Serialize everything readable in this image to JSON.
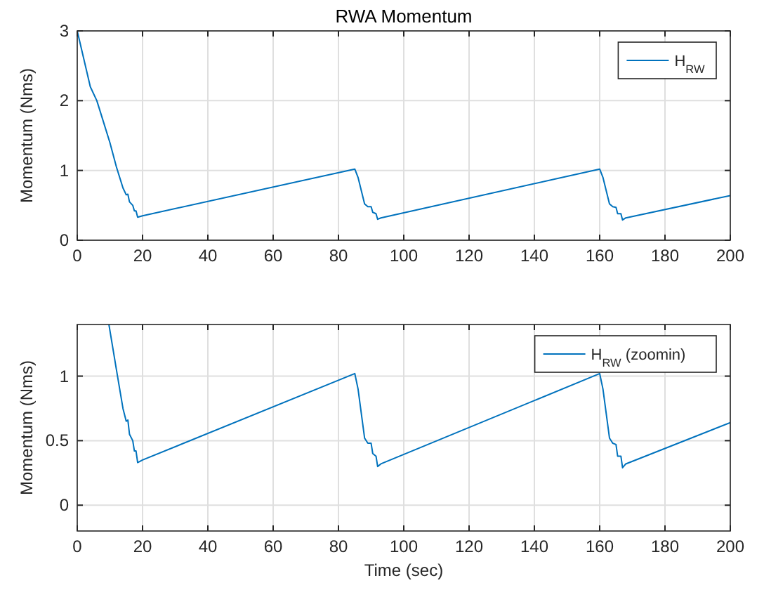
{
  "chart_data": [
    {
      "type": "line",
      "title": "RWA Momentum",
      "ylabel": "Momentum (Nms)",
      "xlim": [
        0,
        200
      ],
      "xticks": [
        0,
        20,
        40,
        60,
        80,
        100,
        120,
        140,
        160,
        180,
        200
      ],
      "ylim": [
        0,
        3
      ],
      "yticks": [
        0,
        1,
        2,
        3
      ],
      "grid": true,
      "legend": "top right",
      "x": [
        0,
        2,
        4,
        6,
        8,
        10,
        12,
        14,
        15,
        15.5,
        16,
        17,
        17.5,
        18,
        18.5,
        20,
        85,
        86,
        88,
        89,
        90,
        90.5,
        91.5,
        92,
        93,
        160,
        161,
        163,
        164,
        165,
        165.5,
        166.5,
        167,
        168,
        200
      ],
      "series": [
        {
          "name": "H$_{RW}$",
          "color": "#0072bd",
          "values": [
            3,
            2.6,
            2.2,
            2.0,
            1.7,
            1.4,
            1.05,
            0.75,
            0.65,
            0.66,
            0.55,
            0.5,
            0.42,
            0.42,
            0.33,
            0.35,
            1.02,
            0.9,
            0.52,
            0.48,
            0.48,
            0.4,
            0.38,
            0.3,
            0.32,
            1.02,
            0.9,
            0.52,
            0.48,
            0.47,
            0.38,
            0.38,
            0.29,
            0.32,
            0.64
          ]
        }
      ]
    },
    {
      "type": "line",
      "xlabel": "Time (sec)",
      "ylabel": "Momentum (Nms)",
      "xlim": [
        0,
        200
      ],
      "xticks": [
        0,
        20,
        40,
        60,
        80,
        100,
        120,
        140,
        160,
        180,
        200
      ],
      "ylim": [
        -0.2,
        1.4
      ],
      "yticks": [
        0,
        0.5,
        1
      ],
      "grid": true,
      "legend": "top right",
      "x": [
        9.7,
        12,
        14,
        15,
        15.5,
        16,
        17,
        17.5,
        18,
        18.5,
        20,
        85,
        86,
        88,
        89,
        90,
        90.5,
        91.5,
        92,
        93,
        160,
        161,
        163,
        164,
        165,
        165.5,
        166.5,
        167,
        168,
        200
      ],
      "series": [
        {
          "name": "H$_{RW}$ (zoomin)",
          "color": "#0072bd",
          "values": [
            1.4,
            1.05,
            0.75,
            0.65,
            0.66,
            0.55,
            0.5,
            0.42,
            0.42,
            0.33,
            0.35,
            1.02,
            0.9,
            0.52,
            0.48,
            0.48,
            0.4,
            0.38,
            0.3,
            0.32,
            1.02,
            0.9,
            0.52,
            0.48,
            0.47,
            0.38,
            0.38,
            0.29,
            0.32,
            0.64
          ]
        }
      ]
    }
  ]
}
